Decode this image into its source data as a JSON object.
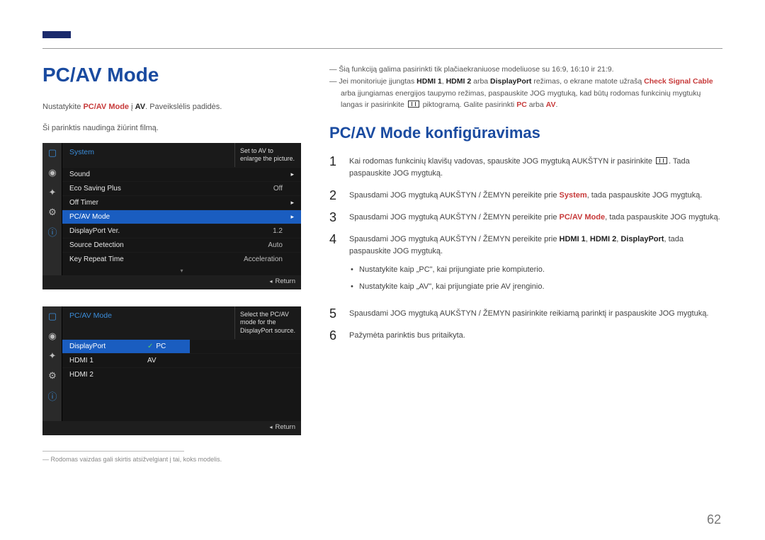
{
  "colors": {
    "brand_blue": "#1a4ba0",
    "accent_red": "#c73a3a",
    "osd_bg": "#111111",
    "osd_select": "#1a5dc0",
    "osd_link": "#3b8dda",
    "rule_gray": "#999999"
  },
  "page_number": "62",
  "h1": "PC/AV Mode",
  "intro": {
    "line1_pre": "Nustatykite ",
    "line1_accent": "PC/AV Mode",
    "line1_mid": " į ",
    "line1_bold": "AV",
    "line1_post": ". Paveikslėlis padidės.",
    "line2": "Ši parinktis naudinga žiūrint filmą."
  },
  "osd1": {
    "title": "System",
    "tip": "Set to AV to enlarge the picture.",
    "rows": [
      {
        "label": "Sound",
        "value": "",
        "arrow": "▸",
        "selected": false
      },
      {
        "label": "Eco Saving Plus",
        "value": "Off",
        "arrow": "",
        "selected": false
      },
      {
        "label": "Off Timer",
        "value": "",
        "arrow": "▸",
        "selected": false
      },
      {
        "label": "PC/AV Mode",
        "value": "",
        "arrow": "▸",
        "selected": true
      },
      {
        "label": "DisplayPort Ver.",
        "value": "1.2",
        "arrow": "",
        "selected": false
      },
      {
        "label": "Source Detection",
        "value": "Auto",
        "arrow": "",
        "selected": false
      },
      {
        "label": "Key Repeat Time",
        "value": "Acceleration",
        "arrow": "",
        "selected": false
      }
    ],
    "foot": "Return"
  },
  "osd2": {
    "title": "PC/AV Mode",
    "tip": "Select the PC/AV mode for the DisplayPort source.",
    "rows": [
      {
        "c1": "DisplayPort",
        "c1_sel": true,
        "c2": "PC",
        "c2_sel": true,
        "check": true
      },
      {
        "c1": "HDMI 1",
        "c1_sel": false,
        "c2": "AV",
        "c2_sel": false,
        "check": false
      },
      {
        "c1": "HDMI 2",
        "c1_sel": false,
        "c2": "",
        "c2_sel": false,
        "check": false
      }
    ],
    "foot": "Return"
  },
  "side_icons": [
    "▢",
    "◉",
    "✦",
    "⚙",
    "ⓘ"
  ],
  "footnote_left": "Rodomas vaizdas gali skirtis atsižvelgiant į tai, koks modelis.",
  "right_notes": {
    "n1": "Šią funkciją galima pasirinkti tik plačiaekraniuose modeliuose su 16:9, 16:10 ir 21:9.",
    "n2_a": "Jei monitoriuje įjungtas ",
    "n2_b": "HDMI 1",
    "n2_c": ", ",
    "n2_d": "HDMI 2",
    "n2_e": " arba ",
    "n2_f": "DisplayPort",
    "n2_g": " režimas, o ekrane matote užrašą ",
    "n2_h": "Check Signal Cable",
    "n2_i": " arba įjungiamas energijos taupymo režimas, paspauskite JOG mygtuką, kad būtų rodomas funkcinių mygtukų langas ir pasirinkite ",
    "n2_j": " piktogramą. Galite pasirinkti ",
    "n2_k": "PC",
    "n2_l": " arba ",
    "n2_m": "AV",
    "n2_n": "."
  },
  "h2": "PC/AV Mode konfigūravimas",
  "steps": {
    "s1_a": "Kai rodomas funkcinių klavišų vadovas, spauskite JOG mygtuką AUKŠTYN ir pasirinkite ",
    "s1_b": ". Tada paspauskite JOG mygtuką.",
    "s2_a": "Spausdami JOG mygtuką AUKŠTYN / ŽEMYN pereikite prie ",
    "s2_b": "System",
    "s2_c": ", tada paspauskite JOG mygtuką.",
    "s3_a": "Spausdami JOG mygtuką AUKŠTYN / ŽEMYN pereikite prie ",
    "s3_b": "PC/AV Mode",
    "s3_c": ", tada paspauskite JOG mygtuką.",
    "s4_a": "Spausdami JOG mygtuką AUKŠTYN / ŽEMYN pereikite prie ",
    "s4_b": "HDMI 1",
    "s4_c": ", ",
    "s4_d": "HDMI 2",
    "s4_e": ", ",
    "s4_f": "DisplayPort",
    "s4_g": ", tada paspauskite JOG mygtuką.",
    "sub1": "Nustatykite kaip „PC\", kai prijungiate prie kompiuterio.",
    "sub2": "Nustatykite kaip „AV\", kai prijungiate prie AV įrenginio.",
    "s5": "Spausdami JOG mygtuką AUKŠTYN / ŽEMYN pasirinkite reikiamą parinktį ir paspauskite JOG mygtuką.",
    "s6": "Pažymėta parinktis bus pritaikyta."
  }
}
